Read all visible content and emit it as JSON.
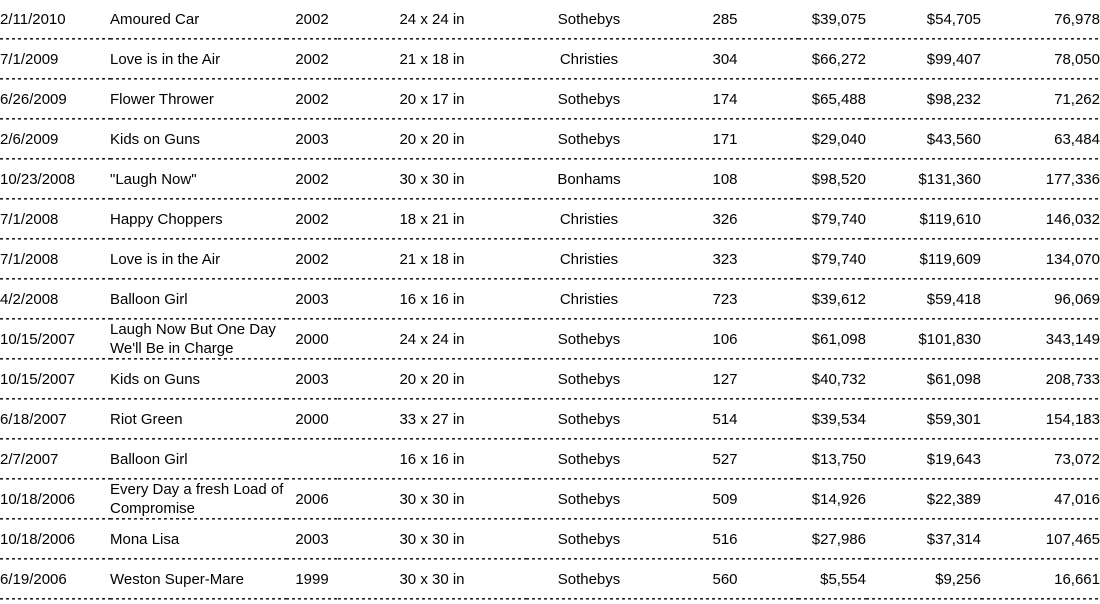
{
  "colors": {
    "text": "#000000",
    "row_divider": "#222222",
    "background": "#ffffff"
  },
  "table": {
    "rows": [
      [
        "2/11/2010",
        "Amoured Car",
        "2002",
        "24 x 24 in",
        "Sothebys",
        "285",
        "$39,075",
        "$54,705",
        "76,978"
      ],
      [
        "7/1/2009",
        "Love is in the Air",
        "2002",
        "21 x 18 in",
        "Christies",
        "304",
        "$66,272",
        "$99,407",
        "78,050"
      ],
      [
        "6/26/2009",
        "Flower Thrower",
        "2002",
        "20 x 17 in",
        "Sothebys",
        "174",
        "$65,488",
        "$98,232",
        "71,262"
      ],
      [
        "2/6/2009",
        "Kids on Guns",
        "2003",
        "20 x 20 in",
        "Sothebys",
        "171",
        "$29,040",
        "$43,560",
        "63,484"
      ],
      [
        "10/23/2008",
        "\"Laugh Now\"",
        "2002",
        "30 x 30 in",
        "Bonhams",
        "108",
        "$98,520",
        "$131,360",
        "177,336"
      ],
      [
        "7/1/2008",
        "Happy Choppers",
        "2002",
        "18 x 21 in",
        "Christies",
        "326",
        "$79,740",
        "$119,610",
        "146,032"
      ],
      [
        "7/1/2008",
        "Love is in the Air",
        "2002",
        "21 x 18 in",
        "Christies",
        "323",
        "$79,740",
        "$119,609",
        "134,070"
      ],
      [
        "4/2/2008",
        "Balloon Girl",
        "2003",
        "16 x 16 in",
        "Christies",
        "723",
        "$39,612",
        "$59,418",
        "96,069"
      ],
      [
        "10/15/2007",
        "Laugh Now But One Day We'll Be in Charge",
        "2000",
        "24 x 24 in",
        "Sothebys",
        "106",
        "$61,098",
        "$101,830",
        "343,149"
      ],
      [
        "10/15/2007",
        "Kids on Guns",
        "2003",
        "20 x 20 in",
        "Sothebys",
        "127",
        "$40,732",
        "$61,098",
        "208,733"
      ],
      [
        "6/18/2007",
        "Riot Green",
        "2000",
        "33 x 27 in",
        "Sothebys",
        "514",
        "$39,534",
        "$59,301",
        "154,183"
      ],
      [
        "2/7/2007",
        "Balloon Girl",
        "",
        "16 x 16 in",
        "Sothebys",
        "527",
        "$13,750",
        "$19,643",
        "73,072"
      ],
      [
        "10/18/2006",
        "Every Day a fresh Load of Compromise",
        "2006",
        "30 x 30 in",
        "Sothebys",
        "509",
        "$14,926",
        "$22,389",
        "47,016"
      ],
      [
        "10/18/2006",
        "Mona Lisa",
        "2003",
        "30 x 30 in",
        "Sothebys",
        "516",
        "$27,986",
        "$37,314",
        "107,465"
      ],
      [
        "6/19/2006",
        "Weston Super-Mare",
        "1999",
        "30 x 30 in",
        "Sothebys",
        "560",
        "$5,554",
        "$9,256",
        "16,661"
      ]
    ]
  }
}
